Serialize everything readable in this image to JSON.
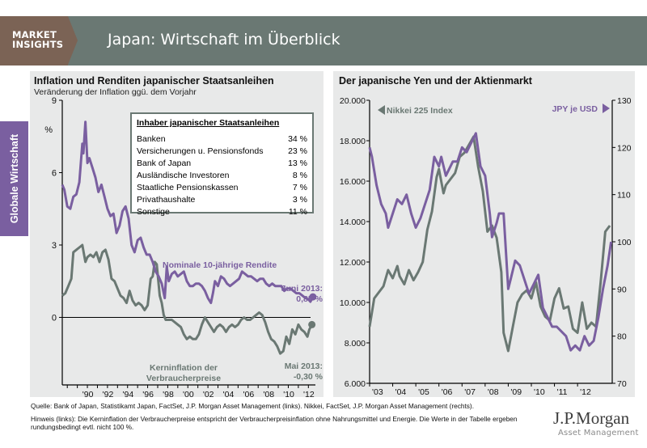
{
  "header": {
    "brand_line1": "MARKET",
    "brand_line2": "INSIGHTS",
    "title": "Japan: Wirtschaft im Überblick"
  },
  "side_tab": {
    "label": "Globale Wirtschaft"
  },
  "left_panel": {
    "title": "Inflation und Renditen japanischer Staatsanleihen",
    "subtitle": "Veränderung der Inflation ggü. dem Vorjahr",
    "holders_table": {
      "title": "Inhaber japanischer Staatsanleihen",
      "rows": [
        {
          "label": "Banken",
          "value": "34 %"
        },
        {
          "label": "Versicherungen u. Pensionsfonds",
          "value": "23 %"
        },
        {
          "label": "Bank of Japan",
          "value": "13 %"
        },
        {
          "label": "Ausländische Investoren",
          "value": "8 %"
        },
        {
          "label": "Staatliche Pensionskassen",
          "value": "7 %"
        },
        {
          "label": "Privathaushalte",
          "value": "3 %"
        },
        {
          "label": "Sonstige",
          "value": "11 %"
        }
      ]
    }
  },
  "right_panel": {
    "title": "Der japanische Yen und der Aktienmarkt"
  },
  "footer": {
    "source": "Quelle: Bank of Japan, Statistikamt Japan, FactSet, J.P. Morgan Asset Management (links). Nikkei, FactSet, J.P. Morgan Asset Management (rechts).",
    "note": "Hinweis (links): Die Kerninflation der Verbraucherpreise entspricht der Verbraucherpreisinflation ohne Nahrungsmittel und Energie. Die Werte in der Tabelle ergeben rundungsbedingt evtl. nicht 100 %.",
    "logo_main": "J.P.Morgan",
    "logo_sub": "Asset Management"
  },
  "colors": {
    "purple": "#7a5fa0",
    "gray": "#6a7873",
    "brand_brown": "#7b6355",
    "panel_bg": "#e8e9e9"
  },
  "chart_data": [
    {
      "type": "line",
      "title": "Inflation und Renditen japanischer Staatsanleihen",
      "subtitle": "Veränderung der Inflation ggü. dem Vorjahr",
      "ylabel": "%",
      "ylim": [
        -2.8,
        9
      ],
      "yticks": [
        0,
        3,
        6,
        9
      ],
      "xlim": [
        1988.5,
        2013.7
      ],
      "xticks": [
        1990,
        1992,
        1994,
        1996,
        1998,
        2000,
        2002,
        2004,
        2006,
        2008,
        2010,
        2012
      ],
      "xtick_labels": [
        "'90",
        "'92",
        "'94",
        "'96",
        "'98",
        "'00",
        "'02",
        "'04",
        "'06",
        "'08",
        "'10",
        "'12"
      ],
      "reference_line": 0,
      "grid": false,
      "series": [
        {
          "name": "Nominale 10-jährige Rendite",
          "color": "#7a5fa0",
          "annotation": {
            "line1": "Juni 2013:",
            "line2": "0,85 %"
          },
          "x": [
            1988.5,
            1988.7,
            1989.0,
            1989.3,
            1989.6,
            1989.9,
            1990.2,
            1990.5,
            1990.6,
            1990.8,
            1991.0,
            1991.2,
            1991.5,
            1991.8,
            1992.1,
            1992.4,
            1992.7,
            1993.0,
            1993.3,
            1993.6,
            1993.9,
            1994.2,
            1994.5,
            1994.8,
            1995.1,
            1995.4,
            1995.7,
            1996.0,
            1996.3,
            1996.6,
            1996.9,
            1997.2,
            1997.5,
            1997.8,
            1998.1,
            1998.4,
            1998.7,
            1998.9,
            1999.1,
            1999.4,
            1999.7,
            2000.0,
            2000.3,
            2000.6,
            2000.9,
            2001.2,
            2001.5,
            2001.8,
            2002.1,
            2002.4,
            2002.7,
            2003.0,
            2003.3,
            2003.5,
            2003.7,
            2004.0,
            2004.3,
            2004.6,
            2004.9,
            2005.2,
            2005.5,
            2005.8,
            2006.1,
            2006.4,
            2006.7,
            2007.0,
            2007.3,
            2007.6,
            2007.9,
            2008.2,
            2008.5,
            2008.8,
            2009.1,
            2009.4,
            2009.7,
            2010.0,
            2010.3,
            2010.6,
            2010.9,
            2011.2,
            2011.5,
            2011.8,
            2012.1,
            2012.4,
            2012.7,
            2013.0,
            2013.2,
            2013.45
          ],
          "y": [
            5.5,
            5.3,
            4.6,
            4.5,
            5.0,
            5.1,
            5.6,
            7.2,
            6.8,
            8.1,
            6.4,
            6.6,
            6.2,
            5.8,
            5.2,
            5.5,
            5.0,
            4.5,
            4.2,
            4.3,
            3.5,
            3.8,
            4.4,
            4.6,
            4.1,
            3.0,
            2.7,
            3.2,
            3.3,
            2.9,
            2.6,
            2.6,
            2.3,
            1.9,
            1.7,
            1.4,
            0.8,
            2.1,
            1.5,
            1.8,
            1.9,
            1.7,
            1.8,
            1.9,
            1.5,
            1.3,
            1.3,
            1.4,
            1.4,
            1.3,
            1.1,
            0.8,
            0.6,
            1.0,
            1.5,
            1.3,
            1.7,
            1.6,
            1.4,
            1.3,
            1.4,
            1.5,
            1.6,
            1.9,
            1.8,
            1.7,
            1.7,
            1.6,
            1.5,
            1.6,
            1.6,
            1.4,
            1.3,
            1.4,
            1.3,
            1.3,
            1.3,
            1.1,
            1.2,
            1.2,
            1.1,
            1.0,
            1.0,
            0.9,
            0.8,
            0.75,
            0.65,
            0.85
          ]
        },
        {
          "name": "Kerninflation der Verbraucherpreise",
          "color": "#6a7873",
          "annotation": {
            "line1": "Mai 2013:",
            "line2": "-0,30 %"
          },
          "x": [
            1988.5,
            1988.8,
            1989.1,
            1989.4,
            1989.6,
            1989.9,
            1990.2,
            1990.5,
            1990.8,
            1991.0,
            1991.3,
            1991.6,
            1991.9,
            1992.2,
            1992.5,
            1992.8,
            1993.1,
            1993.4,
            1993.7,
            1994.0,
            1994.3,
            1994.6,
            1994.9,
            1995.2,
            1995.5,
            1995.8,
            1996.1,
            1996.4,
            1996.7,
            1997.0,
            1997.3,
            1997.5,
            1997.7,
            1997.9,
            1998.2,
            1998.4,
            1998.6,
            1998.8,
            1999.1,
            1999.4,
            1999.7,
            2000.0,
            2000.3,
            2000.6,
            2000.9,
            2001.2,
            2001.5,
            2001.8,
            2002.1,
            2002.4,
            2002.7,
            2003.0,
            2003.3,
            2003.6,
            2003.9,
            2004.2,
            2004.5,
            2004.8,
            2005.1,
            2005.4,
            2005.7,
            2006.0,
            2006.3,
            2006.6,
            2006.9,
            2007.2,
            2007.5,
            2007.8,
            2008.1,
            2008.4,
            2008.7,
            2009.0,
            2009.3,
            2009.6,
            2009.9,
            2010.2,
            2010.5,
            2010.8,
            2011.1,
            2011.4,
            2011.7,
            2012.0,
            2012.3,
            2012.6,
            2012.9,
            2013.1,
            2013.35
          ],
          "y": [
            0.9,
            1.0,
            1.3,
            1.6,
            2.7,
            2.8,
            2.9,
            3.0,
            2.3,
            2.5,
            2.6,
            2.5,
            2.7,
            2.3,
            2.7,
            2.8,
            2.4,
            1.6,
            1.5,
            1.2,
            0.9,
            0.8,
            0.6,
            1.1,
            0.7,
            0.5,
            0.6,
            0.5,
            0.3,
            0.5,
            1.6,
            1.7,
            2.3,
            2.2,
            0.9,
            0.6,
            0.1,
            -0.1,
            -0.1,
            -0.1,
            -0.2,
            -0.3,
            -0.4,
            -0.7,
            -0.9,
            -0.8,
            -0.9,
            -0.9,
            -0.7,
            -0.3,
            0.0,
            -0.2,
            -0.4,
            -0.6,
            -0.4,
            -0.3,
            -0.4,
            -0.6,
            -0.4,
            -0.3,
            -0.4,
            -0.3,
            -0.1,
            0.0,
            -0.1,
            -0.1,
            0.0,
            0.1,
            0.2,
            0.1,
            -0.2,
            -0.6,
            -0.9,
            -1.0,
            -1.2,
            -1.5,
            -1.4,
            -0.8,
            -1.1,
            -0.5,
            -0.7,
            -0.3,
            -0.5,
            -0.6,
            -0.8,
            -0.5,
            -0.3
          ]
        }
      ]
    },
    {
      "type": "line",
      "title": "Der japanische Yen und der Aktienmarkt",
      "xlim": [
        2003.0,
        2013.5
      ],
      "xticks": [
        2003,
        2004,
        2005,
        2006,
        2007,
        2008,
        2009,
        2010,
        2011,
        2012
      ],
      "xtick_labels": [
        "'03",
        "'04",
        "'05",
        "'06",
        "'07",
        "'08",
        "'09",
        "'10",
        "'11",
        "'12"
      ],
      "y_left": {
        "ylim": [
          6000,
          20000
        ],
        "ticks": [
          6000,
          8000,
          10000,
          12000,
          14000,
          16000,
          18000,
          20000
        ],
        "tick_labels": [
          "6.000",
          "8.000",
          "10.000",
          "12.000",
          "14.000",
          "16.000",
          "18.000",
          "20.000"
        ]
      },
      "y_right": {
        "ylim": [
          70,
          130
        ],
        "ticks": [
          70,
          80,
          90,
          100,
          110,
          120,
          130
        ],
        "tick_labels": [
          "70",
          "80",
          "90",
          "100",
          "110",
          "120",
          "130"
        ]
      },
      "grid": false,
      "series": [
        {
          "name": "Nikkei 225 Index",
          "legend_label": "Nikkei 225 Index",
          "axis": "left",
          "color": "#6a7873",
          "x": [
            2003.0,
            2003.2,
            2003.4,
            2003.6,
            2003.8,
            2004.0,
            2004.2,
            2004.3,
            2004.5,
            2004.7,
            2004.9,
            2005.1,
            2005.3,
            2005.5,
            2005.7,
            2005.9,
            2006.0,
            2006.2,
            2006.3,
            2006.5,
            2006.7,
            2006.9,
            2007.1,
            2007.3,
            2007.5,
            2007.7,
            2007.9,
            2008.1,
            2008.3,
            2008.5,
            2008.7,
            2008.8,
            2009.0,
            2009.2,
            2009.4,
            2009.6,
            2009.8,
            2010.0,
            2010.2,
            2010.4,
            2010.6,
            2010.8,
            2011.0,
            2011.2,
            2011.4,
            2011.6,
            2011.8,
            2012.0,
            2012.2,
            2012.4,
            2012.6,
            2012.8,
            2013.0,
            2013.2,
            2013.4
          ],
          "y": [
            8800,
            10200,
            10500,
            10800,
            11600,
            11200,
            11800,
            11300,
            10900,
            11600,
            11100,
            11500,
            12000,
            13600,
            14500,
            16200,
            16600,
            15400,
            15800,
            16100,
            16400,
            17200,
            17400,
            17800,
            18200,
            16700,
            15500,
            13500,
            13800,
            13200,
            11500,
            8500,
            7600,
            8800,
            10000,
            10400,
            10600,
            10200,
            11000,
            9800,
            9300,
            9100,
            10200,
            10700,
            9700,
            9800,
            8700,
            8500,
            10000,
            8700,
            9000,
            8800,
            11000,
            13500,
            13800
          ]
        },
        {
          "name": "JPY je USD",
          "legend_label": "JPY je USD",
          "axis": "right",
          "color": "#7a5fa0",
          "x": [
            2003.0,
            2003.1,
            2003.3,
            2003.5,
            2003.7,
            2003.8,
            2004.0,
            2004.2,
            2004.4,
            2004.6,
            2004.8,
            2005.0,
            2005.2,
            2005.4,
            2005.6,
            2005.8,
            2006.0,
            2006.1,
            2006.3,
            2006.5,
            2006.6,
            2006.8,
            2007.0,
            2007.2,
            2007.4,
            2007.6,
            2007.8,
            2008.0,
            2008.2,
            2008.3,
            2008.5,
            2008.6,
            2008.8,
            2009.0,
            2009.1,
            2009.3,
            2009.5,
            2009.7,
            2009.9,
            2010.1,
            2010.3,
            2010.5,
            2010.7,
            2010.9,
            2011.1,
            2011.3,
            2011.5,
            2011.7,
            2011.9,
            2012.1,
            2012.3,
            2012.5,
            2012.7,
            2012.9,
            2013.1,
            2013.3,
            2013.45
          ],
          "y": [
            120,
            118,
            112,
            108,
            106,
            103,
            106,
            109,
            108,
            110,
            106,
            103,
            105,
            108,
            111,
            118,
            116,
            118,
            114,
            116,
            117,
            117,
            120,
            119,
            121,
            123,
            116,
            114,
            106,
            101,
            104,
            106,
            106,
            90,
            92,
            96,
            95,
            92,
            89,
            91,
            93,
            86,
            84,
            82,
            82,
            81,
            80,
            77,
            78,
            77,
            80,
            78,
            79,
            84,
            90,
            95,
            100
          ]
        }
      ]
    }
  ]
}
